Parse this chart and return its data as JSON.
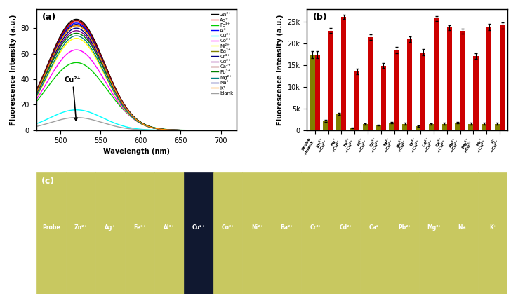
{
  "panel_a": {
    "title": "(a)",
    "xlabel": "Wavelength (nm)",
    "ylabel": "Fluorescence Intensity (a.u.)",
    "xlim": [
      470,
      720
    ],
    "ylim": [
      0,
      95
    ],
    "yticks": [
      0,
      20,
      40,
      60,
      80
    ],
    "peak_wavelength": 520,
    "annotation": "Cu²⁺",
    "lines": [
      {
        "label": "Zn²⁺",
        "color": "#000000",
        "peak": 87,
        "sigma": 35
      },
      {
        "label": "Ag⁺",
        "color": "#ff0000",
        "peak": 85,
        "sigma": 35
      },
      {
        "label": "Fe³⁺",
        "color": "#00cc00",
        "peak": 53,
        "sigma": 38
      },
      {
        "label": "Al³⁺",
        "color": "#0000ff",
        "peak": 84,
        "sigma": 35
      },
      {
        "label": "Cu²⁺",
        "color": "#00ffff",
        "peak": 16,
        "sigma": 33
      },
      {
        "label": "Co²⁺",
        "color": "#ff00ff",
        "peak": 63,
        "sigma": 36
      },
      {
        "label": "Ni²⁺",
        "color": "#ffff00",
        "peak": 72,
        "sigma": 35
      },
      {
        "label": "Ba²⁺",
        "color": "#808000",
        "peak": 82,
        "sigma": 35
      },
      {
        "label": "Cr³⁺",
        "color": "#000080",
        "peak": 80,
        "sigma": 35
      },
      {
        "label": "Cd²⁺",
        "color": "#800080",
        "peak": 78,
        "sigma": 35
      },
      {
        "label": "Ca²⁺",
        "color": "#800000",
        "peak": 86,
        "sigma": 35
      },
      {
        "label": "Pb²⁺",
        "color": "#008000",
        "peak": 76,
        "sigma": 36
      },
      {
        "label": "Mg²⁺",
        "color": "#008080",
        "peak": 74,
        "sigma": 35
      },
      {
        "label": "Na⁺",
        "color": "#000080",
        "peak": 83,
        "sigma": 35
      },
      {
        "label": "K⁺",
        "color": "#ff8c00",
        "peak": 82,
        "sigma": 35
      },
      {
        "label": "blank",
        "color": "#a0a0a0",
        "peak": 10,
        "sigma": 32
      }
    ]
  },
  "panel_b": {
    "title": "(b)",
    "ylabel": "Fluorescence Intensity (a.u.)",
    "ylim": [
      0,
      28000
    ],
    "yticks": [
      0,
      5000,
      10000,
      15000,
      20000,
      25000
    ],
    "yticklabels": [
      "0",
      "5k",
      "10k",
      "15k",
      "20k",
      "25k"
    ],
    "bar_color_dark": "#808000",
    "bar_color_red": "#cc0000",
    "categories": [
      "Probe+blank",
      "Zn²⁺",
      "Ag⁺",
      "Fe³⁺",
      "Al³⁺",
      "Co²⁺",
      "Ni²⁺",
      "Ba²⁺",
      "Cr³⁺",
      "Cd²⁺",
      "Ca²⁺",
      "Pb²⁺",
      "Mg²⁺",
      "Na⁺",
      "K⁺"
    ],
    "dark_values": [
      17500,
      2200,
      3800,
      500,
      1400,
      1200,
      1800,
      1500,
      1000,
      1400,
      1500,
      1800,
      1500,
      1500,
      1500
    ],
    "red_values": [
      17500,
      23000,
      26200,
      13600,
      21500,
      14900,
      18500,
      21000,
      18000,
      25800,
      23700,
      22900,
      17100,
      23800,
      24200
    ],
    "dark_errors": [
      800,
      200,
      300,
      100,
      200,
      150,
      200,
      200,
      150,
      200,
      200,
      200,
      200,
      200,
      200
    ],
    "red_errors": [
      800,
      600,
      500,
      600,
      600,
      600,
      700,
      700,
      700,
      600,
      600,
      600,
      600,
      700,
      700
    ],
    "xlabel_rotation": 60
  },
  "panel_c": {
    "title": "(c)",
    "labels": [
      "Probe",
      "Zn²⁺",
      "Ag⁺",
      "Fe³⁺",
      "Al³⁺",
      "Cu²⁺",
      "Co²⁺",
      "Ni²⁺",
      "Ba²⁺",
      "Cr³⁺",
      "Cd²⁺",
      "Ca²⁺",
      "Pb²⁺",
      "Mg²⁺",
      "Na⁺",
      "K⁺"
    ],
    "colors": [
      "#c8c860",
      "#c8c860",
      "#c8c860",
      "#c8c860",
      "#c8c860",
      "#101830",
      "#c8c860",
      "#c8c860",
      "#c8c860",
      "#c8c860",
      "#c8c860",
      "#c8c860",
      "#c8c860",
      "#c8c860",
      "#c8c860",
      "#c8c860"
    ],
    "bg_color": "#1a1a1a"
  },
  "figure_bg": "#ffffff"
}
